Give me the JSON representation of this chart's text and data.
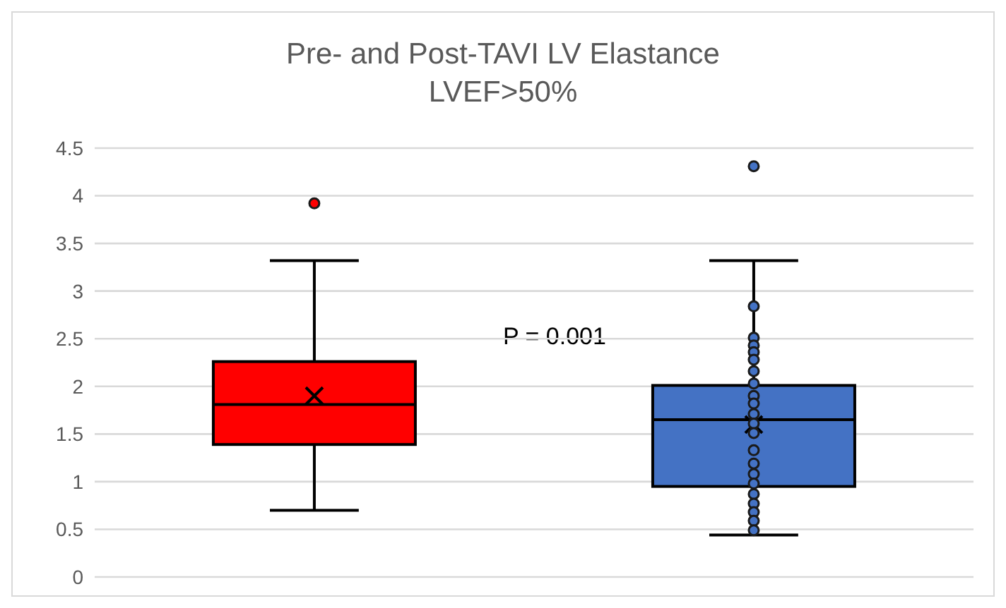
{
  "chart_data": {
    "type": "box",
    "title": "Pre- and Post-TAVI LV Elastance",
    "subtitle": "LVEF>50%",
    "categories": [
      null,
      null
    ],
    "colors": [
      "#ff0000",
      "#4472c4"
    ],
    "boxes": [
      {
        "low": 0.7,
        "q1": 1.39,
        "median": 1.81,
        "q3": 2.26,
        "high": 3.32,
        "mean": 1.9,
        "outliers": [
          3.92
        ]
      },
      {
        "low": 0.44,
        "q1": 0.95,
        "median": 1.65,
        "q3": 2.01,
        "high": 3.32,
        "mean": 1.6,
        "outliers": [
          4.31,
          2.84,
          2.51,
          2.43,
          2.36,
          2.28,
          2.16,
          2.03,
          1.9,
          1.82,
          1.71,
          1.61,
          1.51,
          1.33,
          1.19,
          1.08,
          0.98,
          0.87,
          0.77,
          0.68,
          0.59,
          0.49
        ]
      }
    ],
    "ylim": [
      0,
      4.5
    ],
    "yticks": [
      0,
      0.5,
      1,
      1.5,
      2,
      2.5,
      3,
      3.5,
      4,
      4.5
    ],
    "grid": "y",
    "annotations": [
      "P = 0.001"
    ]
  }
}
